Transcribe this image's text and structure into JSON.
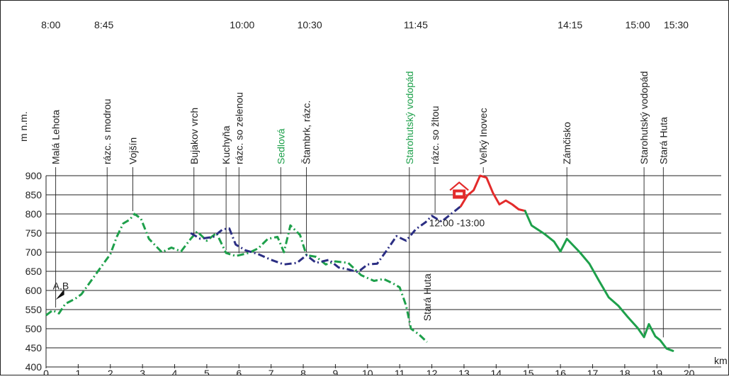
{
  "chart_data": {
    "type": "line",
    "title": "",
    "xlabel": "km",
    "ylabel": "m n.m.",
    "xlim": [
      0,
      21
    ],
    "ylim": [
      400,
      900
    ],
    "x_ticks": [
      0,
      1,
      2,
      3,
      4,
      5,
      6,
      7,
      8,
      9,
      10,
      11,
      12,
      13,
      14,
      15,
      16,
      17,
      18,
      19,
      20
    ],
    "y_ticks": [
      400,
      450,
      500,
      550,
      600,
      650,
      700,
      750,
      800,
      850,
      900
    ],
    "grid": "horizontal",
    "times": [
      {
        "x": 0.15,
        "label": "8:00"
      },
      {
        "x": 1.8,
        "label": "8:45"
      },
      {
        "x": 6.1,
        "label": "10:00"
      },
      {
        "x": 8.2,
        "label": "10:30"
      },
      {
        "x": 11.5,
        "label": "11:45"
      },
      {
        "x": 16.3,
        "label": "14:15"
      },
      {
        "x": 18.4,
        "label": "15:00"
      },
      {
        "x": 19.6,
        "label": "15:30"
      }
    ],
    "waypoints": [
      {
        "x": 0.3,
        "label": "Malá Lehota",
        "color": "#222222"
      },
      {
        "x": 1.9,
        "label": "rázc. s modrou",
        "color": "#222222"
      },
      {
        "x": 2.7,
        "label": "Vojšín",
        "color": "#222222"
      },
      {
        "x": 4.6,
        "label": "Bujakov vrch",
        "color": "#222222"
      },
      {
        "x": 5.6,
        "label": "Kuchyňa",
        "color": "#222222"
      },
      {
        "x": 6.0,
        "label": "rázc. so zelenou",
        "color": "#222222"
      },
      {
        "x": 7.3,
        "label": "Sedlová",
        "color": "#1ea04b"
      },
      {
        "x": 8.1,
        "label": "Štambrk, rázc.",
        "color": "#222222"
      },
      {
        "x": 11.3,
        "label": "Starohutský vodopád",
        "color": "#1ea04b"
      },
      {
        "x": 12.1,
        "label": "rázc. so žltou",
        "color": "#222222"
      },
      {
        "x": 13.6,
        "label": "Veľký Inovec",
        "color": "#222222"
      },
      {
        "x": 16.2,
        "label": "Zámčisko",
        "color": "#222222"
      },
      {
        "x": 18.6,
        "label": "Starohutský vodopád",
        "color": "#222222"
      },
      {
        "x": 19.2,
        "label": "Stará Huta",
        "color": "#222222"
      }
    ],
    "annotations": [
      {
        "text": "A,B",
        "x": 0.3,
        "y": 603
      },
      {
        "text": "12:00 -13:00",
        "x": 12.0,
        "y": 768
      },
      {
        "text": "Stará Huta",
        "x": 11.85,
        "y": 520,
        "rotated": true
      }
    ],
    "colors": {
      "green": "#1ea04b",
      "blue": "#2b2e83",
      "red": "#e32b2b",
      "hut": "#e32b2b",
      "grid": "#222222"
    },
    "series": [
      {
        "style": "dashdot",
        "color": "#1ea04b",
        "points": [
          [
            0,
            535
          ],
          [
            0.2,
            548
          ],
          [
            0.4,
            540
          ],
          [
            0.6,
            565
          ],
          [
            0.9,
            578
          ],
          [
            1.1,
            590
          ],
          [
            1.4,
            625
          ],
          [
            1.7,
            660
          ],
          [
            2.0,
            695
          ],
          [
            2.2,
            740
          ],
          [
            2.4,
            775
          ],
          [
            2.6,
            785
          ],
          [
            2.75,
            800
          ],
          [
            2.95,
            788
          ],
          [
            3.2,
            735
          ],
          [
            3.6,
            700
          ],
          [
            3.9,
            712
          ],
          [
            4.2,
            702
          ],
          [
            4.5,
            735
          ],
          [
            4.7,
            754
          ],
          [
            5.0,
            730
          ],
          [
            5.3,
            750
          ],
          [
            5.6,
            698
          ],
          [
            5.9,
            690
          ],
          [
            6.3,
            698
          ],
          [
            6.6,
            710
          ],
          [
            6.9,
            735
          ],
          [
            7.2,
            740
          ],
          [
            7.4,
            700
          ],
          [
            7.6,
            770
          ],
          [
            7.9,
            745
          ],
          [
            8.1,
            692
          ],
          [
            8.4,
            688
          ],
          [
            8.7,
            668
          ],
          [
            9.0,
            676
          ],
          [
            9.4,
            672
          ],
          [
            9.8,
            640
          ],
          [
            10.2,
            625
          ],
          [
            10.5,
            630
          ],
          [
            10.8,
            618
          ],
          [
            11.0,
            608
          ],
          [
            11.2,
            560
          ],
          [
            11.35,
            500
          ],
          [
            11.6,
            485
          ],
          [
            11.85,
            465
          ]
        ]
      },
      {
        "style": "dashdot",
        "color": "#2b2e83",
        "points": [
          [
            4.5,
            750
          ],
          [
            4.8,
            735
          ],
          [
            5.2,
            740
          ],
          [
            5.5,
            760
          ],
          [
            5.7,
            762
          ],
          [
            5.9,
            720
          ],
          [
            6.2,
            705
          ],
          [
            6.6,
            695
          ],
          [
            7.0,
            680
          ],
          [
            7.4,
            668
          ],
          [
            7.8,
            672
          ],
          [
            8.1,
            692
          ],
          [
            8.4,
            672
          ],
          [
            8.8,
            680
          ],
          [
            9.1,
            660
          ],
          [
            9.4,
            655
          ],
          [
            9.7,
            648
          ],
          [
            10.0,
            668
          ],
          [
            10.3,
            670
          ],
          [
            10.6,
            705
          ],
          [
            10.9,
            742
          ],
          [
            11.2,
            730
          ],
          [
            11.5,
            760
          ],
          [
            11.8,
            778
          ],
          [
            12.0,
            795
          ],
          [
            12.3,
            780
          ],
          [
            12.6,
            800
          ],
          [
            12.9,
            820
          ]
        ]
      },
      {
        "style": "solid",
        "color": "#e32b2b",
        "points": [
          [
            12.9,
            820
          ],
          [
            13.1,
            848
          ],
          [
            13.3,
            862
          ],
          [
            13.5,
            900
          ],
          [
            13.7,
            895
          ],
          [
            13.9,
            855
          ],
          [
            14.1,
            825
          ],
          [
            14.3,
            835
          ],
          [
            14.5,
            825
          ],
          [
            14.7,
            812
          ],
          [
            14.9,
            808
          ]
        ]
      },
      {
        "style": "solid",
        "color": "#1ea04b",
        "points": [
          [
            14.9,
            808
          ],
          [
            15.1,
            770
          ],
          [
            15.5,
            748
          ],
          [
            15.8,
            728
          ],
          [
            16.0,
            702
          ],
          [
            16.2,
            735
          ],
          [
            16.6,
            700
          ],
          [
            16.9,
            670
          ],
          [
            17.2,
            625
          ],
          [
            17.5,
            582
          ],
          [
            17.8,
            560
          ],
          [
            18.1,
            530
          ],
          [
            18.4,
            502
          ],
          [
            18.6,
            478
          ],
          [
            18.75,
            512
          ],
          [
            18.95,
            480
          ],
          [
            19.1,
            470
          ],
          [
            19.3,
            448
          ],
          [
            19.5,
            442
          ]
        ]
      }
    ]
  }
}
